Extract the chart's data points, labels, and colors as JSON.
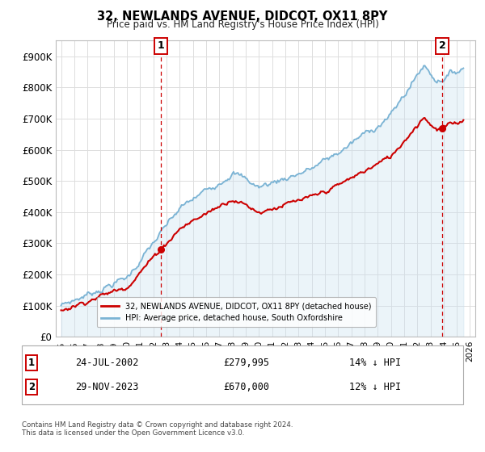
{
  "title": "32, NEWLANDS AVENUE, DIDCOT, OX11 8PY",
  "subtitle": "Price paid vs. HM Land Registry's House Price Index (HPI)",
  "ylim": [
    0,
    950000
  ],
  "yticks": [
    0,
    100000,
    200000,
    300000,
    400000,
    500000,
    600000,
    700000,
    800000,
    900000
  ],
  "ytick_labels": [
    "£0",
    "£100K",
    "£200K",
    "£300K",
    "£400K",
    "£500K",
    "£600K",
    "£700K",
    "£800K",
    "£900K"
  ],
  "xlim_start": 1994.6,
  "xlim_end": 2026.4,
  "sale1_date_num": 2002.55,
  "sale1_label": "1",
  "sale1_price": 279995,
  "sale1_date_str": "24-JUL-2002",
  "sale1_pct": "14% ↓ HPI",
  "sale2_date_num": 2023.91,
  "sale2_label": "2",
  "sale2_price": 670000,
  "sale2_date_str": "29-NOV-2023",
  "sale2_pct": "12% ↓ HPI",
  "hpi_color": "#7ab3d4",
  "hpi_fill_color": "#c8e0f0",
  "price_color": "#cc0000",
  "vline_color": "#cc0000",
  "grid_color": "#dddddd",
  "bg_color": "#ffffff",
  "footnote": "Contains HM Land Registry data © Crown copyright and database right 2024.\nThis data is licensed under the Open Government Licence v3.0.",
  "legend1_label": "32, NEWLANDS AVENUE, DIDCOT, OX11 8PY (detached house)",
  "legend2_label": "HPI: Average price, detached house, South Oxfordshire"
}
